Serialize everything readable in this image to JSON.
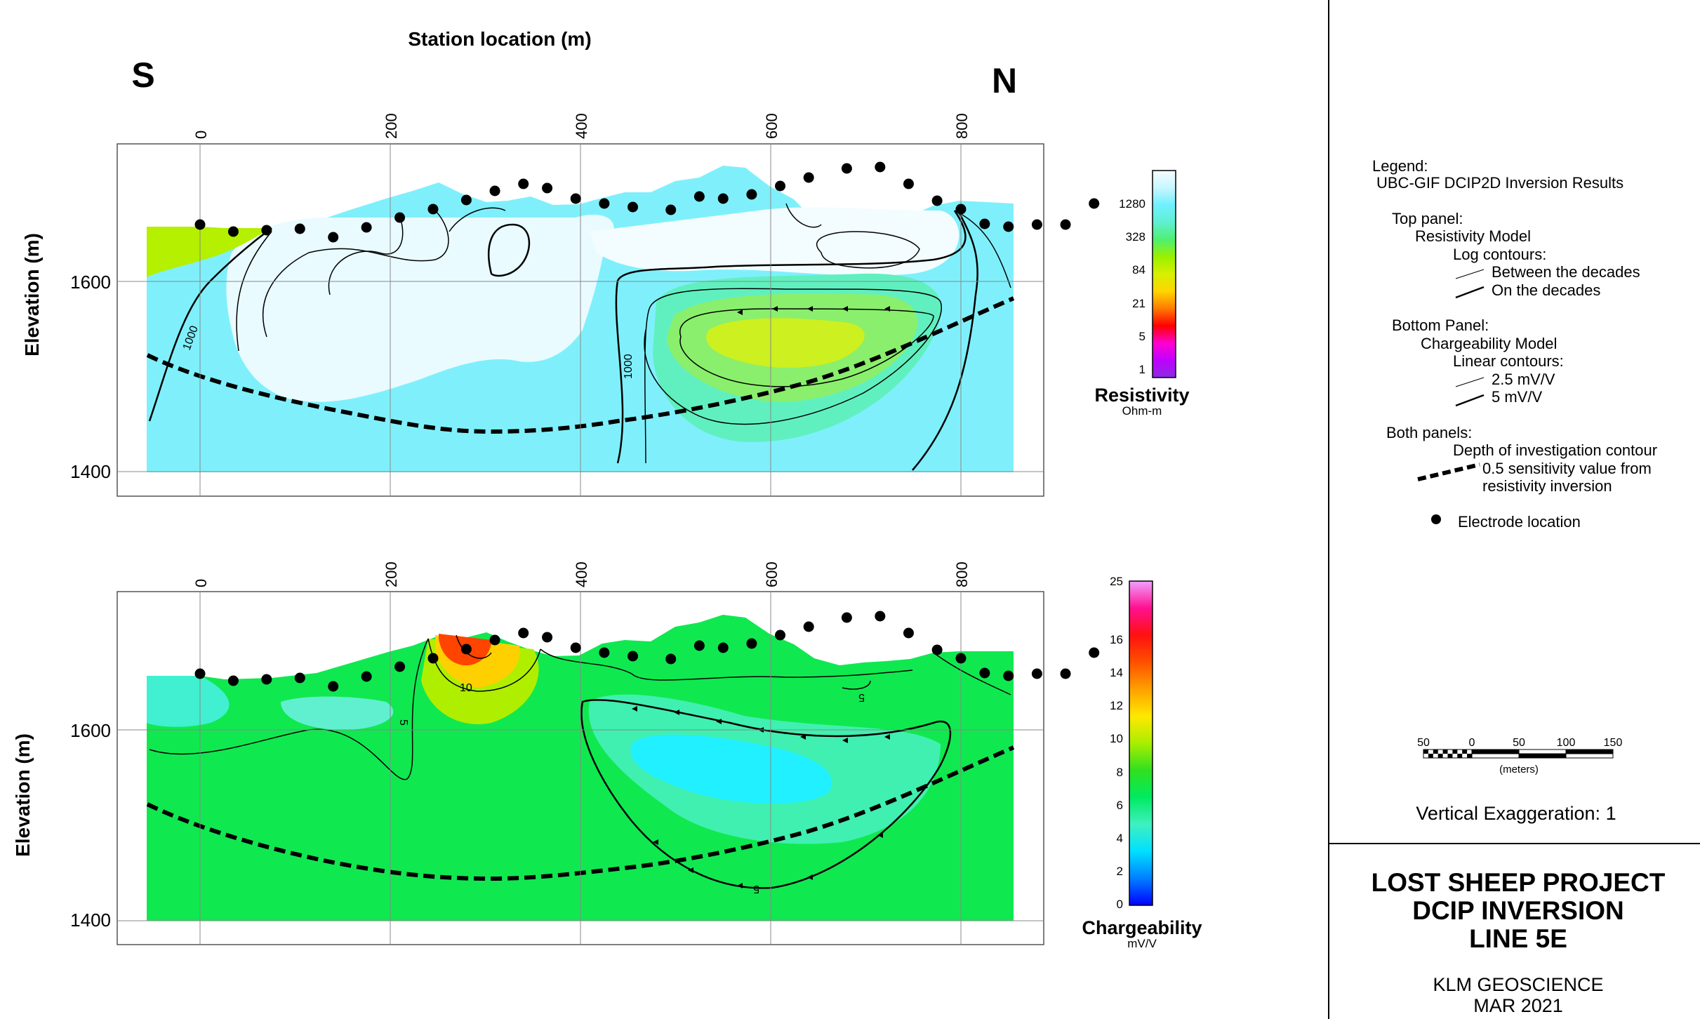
{
  "header": {
    "title": "Station location (m)",
    "south": "S",
    "north": "N"
  },
  "x_ticks": [
    "0",
    "200",
    "400",
    "600",
    "800"
  ],
  "top_panel": {
    "ylabel": "Elevation (m)",
    "y_ticks": [
      "1600",
      "1400"
    ],
    "contour_labels": [
      "1000",
      "1000"
    ]
  },
  "bottom_panel": {
    "ylabel": "Elevation (m)",
    "y_ticks": [
      "1600",
      "1400"
    ],
    "contour_labels": [
      "10",
      "5",
      "5",
      "5"
    ]
  },
  "resistivity_scale": {
    "title": "Resistivity",
    "units": "Ohm-m",
    "ticks": [
      "1280",
      "328",
      "84",
      "21",
      "5",
      "1"
    ]
  },
  "chargeability_scale": {
    "title": "Chargeability",
    "units": "mV/V",
    "ticks": [
      "25",
      "16",
      "14",
      "12",
      "10",
      "8",
      "6",
      "4",
      "2",
      "0"
    ]
  },
  "legend": {
    "heading": "Legend:",
    "subheading": "UBC-GIF DCIP2D Inversion Results",
    "top_panel": "Top panel:",
    "resistivity_model": "Resistivity Model",
    "log_contours": "Log contours:",
    "between_decades": "Between the decades",
    "on_decades": "On the decades",
    "bottom_panel": "Bottom Panel:",
    "chargeability_model": "Chargeability Model",
    "linear_contours": "Linear contours:",
    "c25": "2.5  mV/V",
    "c5": "5 mV/V",
    "both_panels": "Both panels:",
    "doi_line1": "Depth of investigation contour",
    "doi_line2": "0.5 sensitivity value from",
    "doi_line3": "resistivity inversion",
    "electrode": "Electrode location"
  },
  "scale_bar": {
    "ticks": [
      "50",
      "0",
      "50",
      "100",
      "150"
    ],
    "units": "(meters)"
  },
  "vertical_exaggeration": "Vertical Exaggeration: 1",
  "title_block": {
    "line1": "LOST SHEEP PROJECT",
    "line2": "DCIP INVERSION",
    "line3": "LINE 5E",
    "company": "KLM GEOSCIENCE",
    "date": "MAR 2021"
  },
  "colors": {
    "resistivity_ramp": [
      "#8a2be2",
      "#c000ff",
      "#ff00d0",
      "#ff0000",
      "#ff7a00",
      "#ffd500",
      "#d7f000",
      "#9af000",
      "#4ef070",
      "#5ff0d0",
      "#6ff0ff",
      "#c8f6ff",
      "#f4fdff"
    ],
    "chargeability_ramp": [
      "#0000ff",
      "#0080ff",
      "#00e0ff",
      "#40f0c0",
      "#00ea60",
      "#30e020",
      "#aaee00",
      "#ffe800",
      "#ffa000",
      "#ff5000",
      "#ff1010",
      "#ff1090",
      "#f0a0ff"
    ]
  }
}
